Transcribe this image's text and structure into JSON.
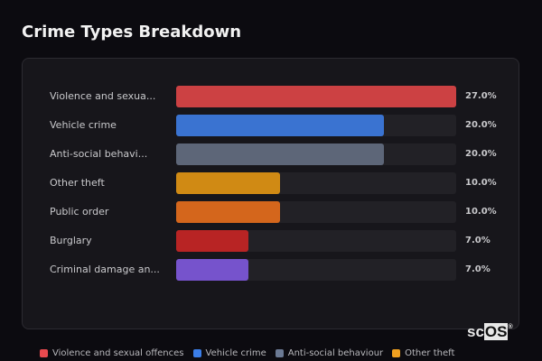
{
  "header": {
    "title": "Crime Types Breakdown"
  },
  "chart_data": {
    "type": "bar",
    "orientation": "horizontal",
    "title": "Crime Types Breakdown",
    "categories": [
      "Violence and sexual offences",
      "Vehicle crime",
      "Anti-social behaviour",
      "Other theft",
      "Public order",
      "Burglary",
      "Criminal damage and arson"
    ],
    "display_labels": [
      "Violence and sexua...",
      "Vehicle crime",
      "Anti-social behavi...",
      "Other theft",
      "Public order",
      "Burglary",
      "Criminal damage an..."
    ],
    "values": [
      27.0,
      20.0,
      20.0,
      10.0,
      10.0,
      7.0,
      7.0
    ],
    "value_labels": [
      "27.0%",
      "20.0%",
      "20.0%",
      "10.0%",
      "10.0%",
      "7.0%",
      "7.0%"
    ],
    "colors": [
      "#cc4143",
      "#3a73d1",
      "#5d6678",
      "#d08a14",
      "#d4661c",
      "#b82424",
      "#7653cc"
    ],
    "xlim": [
      0,
      27
    ],
    "legend": [
      "Violence and sexual offences",
      "Vehicle crime",
      "Anti-social behaviour",
      "Other theft"
    ],
    "legend_position": "bottom"
  },
  "legend": {
    "items": [
      {
        "label": "Violence and sexual offences",
        "color": "#e84a4f"
      },
      {
        "label": "Vehicle crime",
        "color": "#3b7ee8"
      },
      {
        "label": "Anti-social behaviour",
        "color": "#6b7a94"
      },
      {
        "label": "Other theft",
        "color": "#f0a020"
      }
    ]
  },
  "logo": {
    "text_plain": "sc",
    "text_boxed": "OS",
    "mark": "®"
  }
}
